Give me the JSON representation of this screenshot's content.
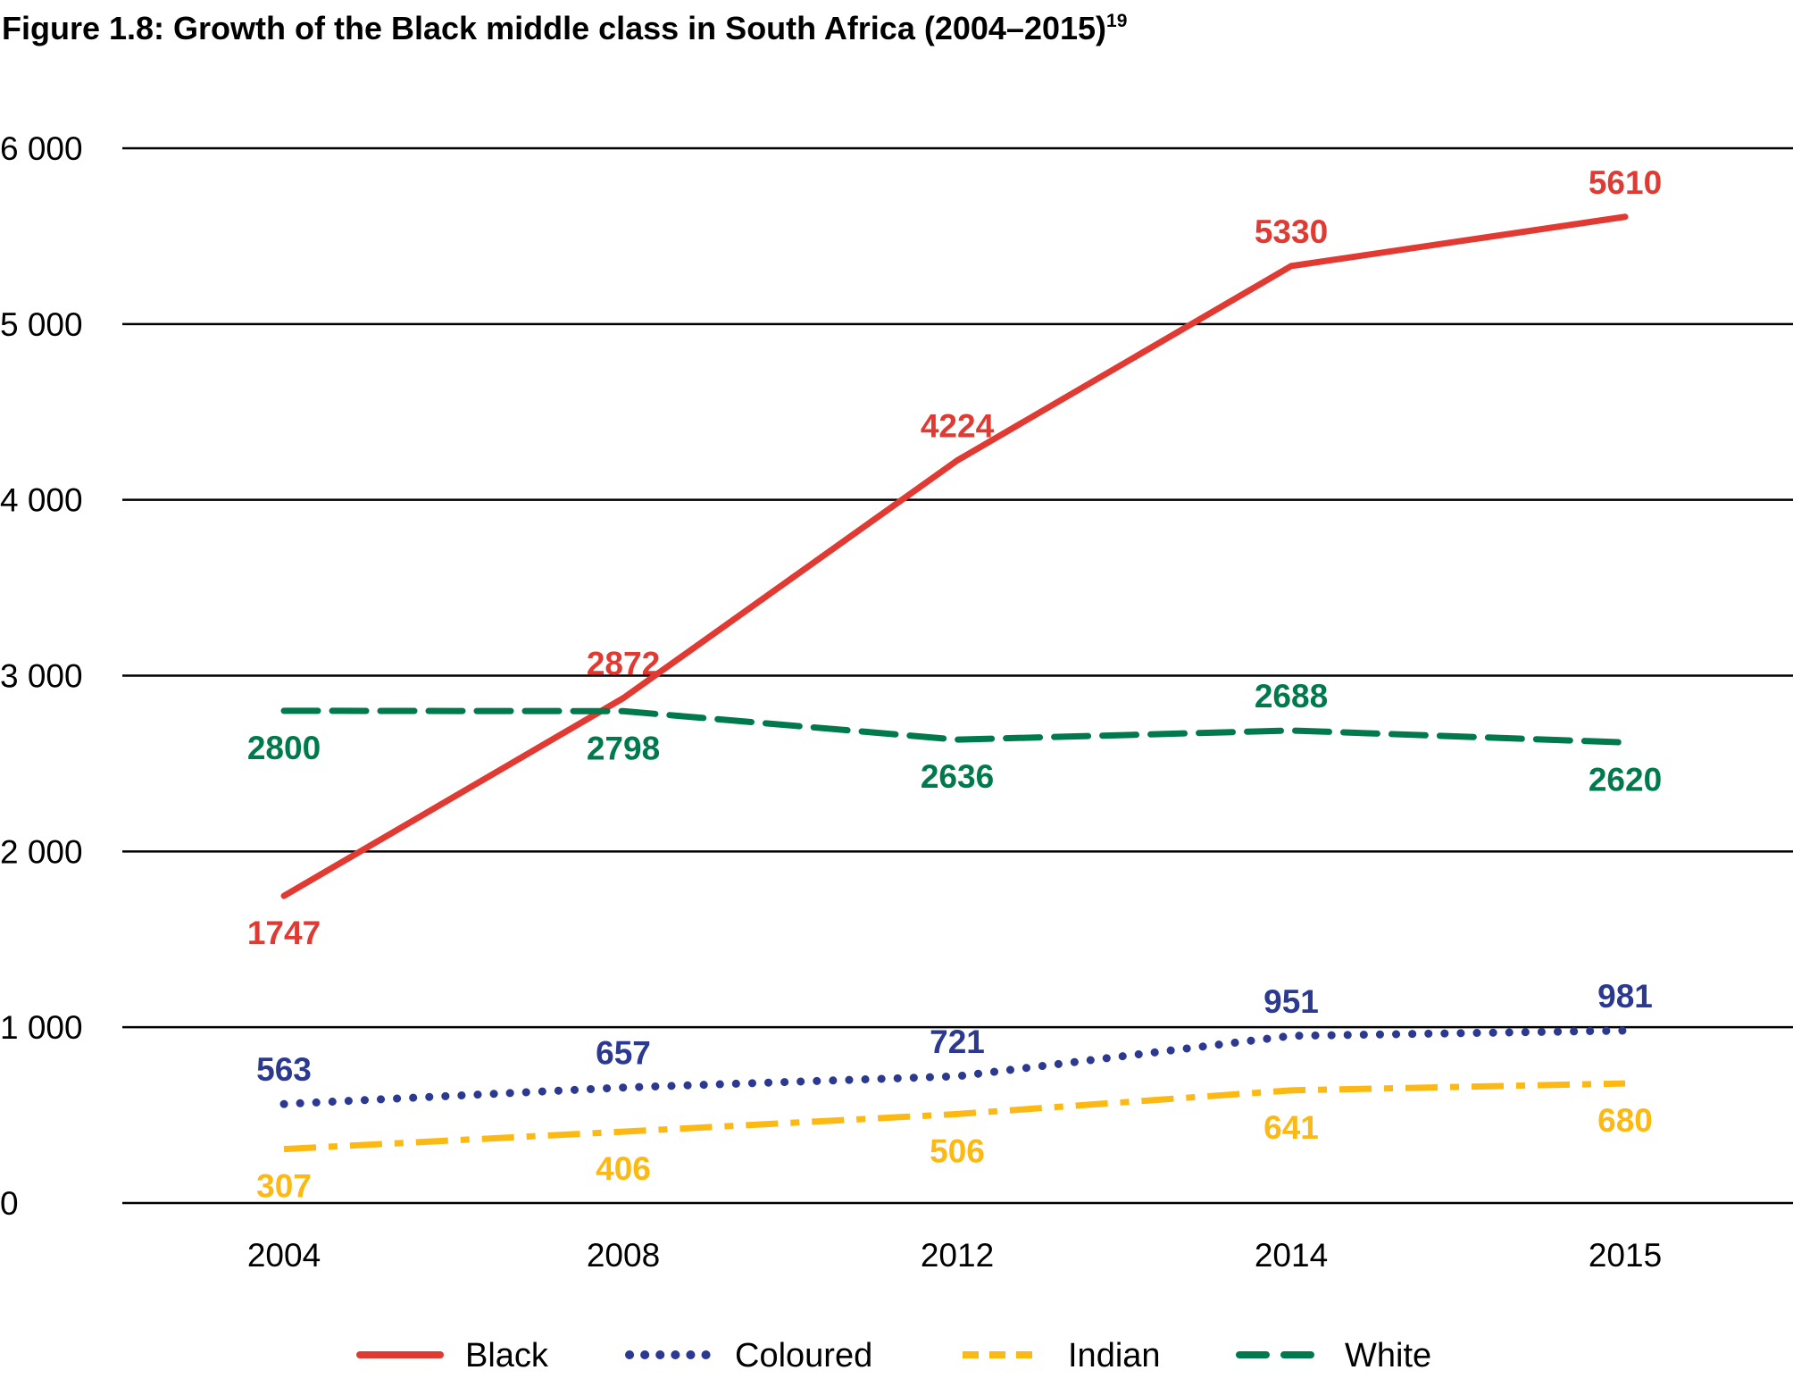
{
  "chart_data": {
    "type": "line",
    "title": "Figure 1.8: Growth of the Black middle class in South Africa (2004–2015)",
    "title_superscript": "19",
    "xlabel": "",
    "ylabel": "",
    "categories": [
      "2004",
      "2008",
      "2012",
      "2014",
      "2015"
    ],
    "ylim": [
      0,
      6000
    ],
    "yticks": [
      0,
      1000,
      2000,
      3000,
      4000,
      5000,
      6000
    ],
    "ytick_labels": [
      "0",
      "1 000",
      "2 000",
      "3 000",
      "4 000",
      "5 000",
      "6 000"
    ],
    "grid": "horizontal",
    "legend_position": "bottom",
    "series": [
      {
        "name": "Black",
        "values": [
          1747,
          2872,
          4224,
          5330,
          5610
        ],
        "color": "#e03a33",
        "style": "solid",
        "label_pos": [
          "below",
          "above",
          "above",
          "above",
          "above"
        ]
      },
      {
        "name": "Coloured",
        "values": [
          563,
          657,
          721,
          951,
          981
        ],
        "color": "#2b3990",
        "style": "dotted",
        "label_pos": [
          "above",
          "above",
          "above",
          "above",
          "above"
        ]
      },
      {
        "name": "Indian",
        "values": [
          307,
          406,
          506,
          641,
          680
        ],
        "color": "#fdb913",
        "style": "dash-dot",
        "label_pos": [
          "below",
          "below",
          "below",
          "below",
          "below"
        ]
      },
      {
        "name": "White",
        "values": [
          2800,
          2798,
          2636,
          2688,
          2620
        ],
        "color": "#007a4d",
        "style": "dashed",
        "label_pos": [
          "below",
          "below",
          "below",
          "above",
          "below"
        ]
      }
    ]
  }
}
